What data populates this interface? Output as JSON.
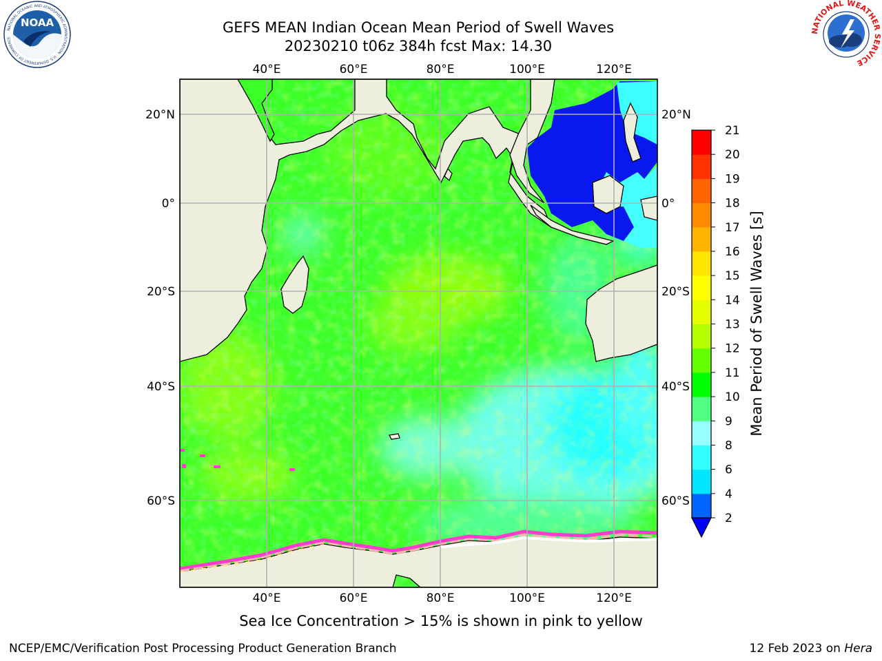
{
  "title_line1": "GEFS MEAN Indian Ocean Mean Period of Swell Waves",
  "title_line2": "20230210 t06z 384h fcst   Max: 14.30",
  "logos": {
    "noaa_text": "NOAA",
    "noaa_ring": "NATIONAL OCEANIC AND ATMOSPHERIC ADMINISTRATION · U.S. DEPARTMENT OF COMMERCE",
    "nws_ring": "NATIONAL WEATHER SERVICE"
  },
  "map": {
    "lon_labels": [
      "40°E",
      "60°E",
      "80°E",
      "100°E",
      "120°E"
    ],
    "lat_labels": [
      "20°N",
      "0°",
      "20°S",
      "40°S",
      "60°S"
    ],
    "land_color": "#eeeedc",
    "grid_color": "#b0b0b0"
  },
  "colorbar": {
    "label": "Mean Period of Swell Waves [s]",
    "ticks": [
      "2",
      "4",
      "6",
      "8",
      "9",
      "10",
      "11",
      "12",
      "13",
      "14",
      "15",
      "16",
      "17",
      "18",
      "19",
      "20",
      "21"
    ],
    "colors": [
      "#0064ff",
      "#00e6ff",
      "#32ffff",
      "#96ffff",
      "#50ff82",
      "#00ff00",
      "#64ff00",
      "#b4ff00",
      "#e6ff00",
      "#ffff00",
      "#ffe600",
      "#ffb400",
      "#ff8c00",
      "#ff6400",
      "#ff3200",
      "#ff0000"
    ],
    "under_color": "#0000ff"
  },
  "note": "Sea Ice Concentration > 15% is shown in pink to yellow",
  "footer_left": "NCEP/EMC/Verification Post Processing Product Generation Branch",
  "footer_date": "12 Feb 2023 on ",
  "footer_machine": "Hera"
}
